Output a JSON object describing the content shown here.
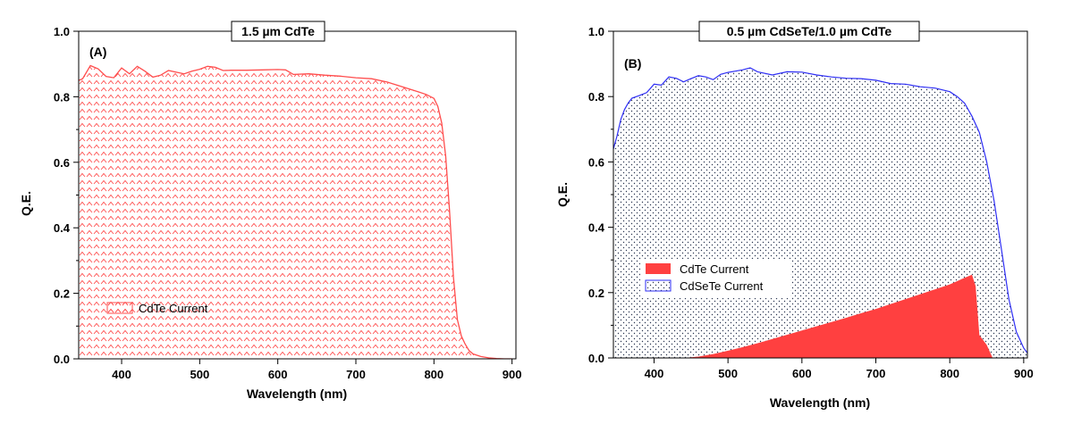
{
  "chart_data": [
    {
      "type": "area",
      "panel_label": "(A)",
      "title": "1.5 µm CdTe",
      "xlabel": "Wavelength (nm)",
      "ylabel": "Q.E.",
      "xlim": [
        345,
        905
      ],
      "ylim": [
        0,
        1.0
      ],
      "xticks": [
        400,
        500,
        600,
        700,
        800,
        900
      ],
      "yticks": [
        0.0,
        0.2,
        0.4,
        0.6,
        0.8,
        1.0
      ],
      "xtick_labels": [
        "400",
        "500",
        "600",
        "700",
        "800",
        "900"
      ],
      "ytick_labels": [
        "0.0",
        "0.2",
        "0.4",
        "0.6",
        "0.8",
        "1.0"
      ],
      "legend_position": "bottom-left",
      "series": [
        {
          "name": "CdTe Current",
          "color": "#ff4d4d",
          "fill": "chevron-pattern",
          "x": [
            345,
            350,
            360,
            370,
            380,
            390,
            400,
            410,
            420,
            430,
            440,
            450,
            460,
            470,
            480,
            490,
            500,
            510,
            520,
            530,
            540,
            560,
            580,
            600,
            610,
            620,
            640,
            660,
            680,
            700,
            720,
            740,
            760,
            780,
            790,
            800,
            805,
            810,
            815,
            820,
            825,
            830,
            835,
            840,
            845,
            850,
            860,
            870,
            880,
            890,
            900
          ],
          "values": [
            0.85,
            0.855,
            0.895,
            0.885,
            0.862,
            0.858,
            0.888,
            0.87,
            0.893,
            0.878,
            0.86,
            0.866,
            0.88,
            0.875,
            0.87,
            0.878,
            0.884,
            0.893,
            0.89,
            0.88,
            0.881,
            0.881,
            0.882,
            0.883,
            0.882,
            0.868,
            0.87,
            0.866,
            0.863,
            0.858,
            0.855,
            0.845,
            0.83,
            0.815,
            0.807,
            0.795,
            0.77,
            0.72,
            0.62,
            0.45,
            0.25,
            0.12,
            0.07,
            0.045,
            0.025,
            0.015,
            0.007,
            0.003,
            0.001,
            0.0,
            0.0
          ]
        }
      ]
    },
    {
      "type": "area",
      "panel_label": "(B)",
      "title": "0.5 µm CdSeTe/1.0 µm CdTe",
      "xlabel": "Wavelength (nm)",
      "ylabel": "Q.E.",
      "xlim": [
        345,
        905
      ],
      "ylim": [
        0,
        1.0
      ],
      "xticks": [
        400,
        500,
        600,
        700,
        800,
        900
      ],
      "yticks": [
        0.0,
        0.2,
        0.4,
        0.6,
        0.8,
        1.0
      ],
      "xtick_labels": [
        "400",
        "500",
        "600",
        "700",
        "800",
        "900"
      ],
      "ytick_labels": [
        "0.0",
        "0.2",
        "0.4",
        "0.6",
        "0.8",
        "1.0"
      ],
      "legend_position": "lower-left",
      "series": [
        {
          "name": "CdTe Current",
          "color": "#ff4040",
          "fill": "solid",
          "x": [
            345,
            440,
            460,
            480,
            500,
            520,
            540,
            560,
            580,
            600,
            620,
            640,
            660,
            680,
            700,
            720,
            740,
            760,
            780,
            800,
            820,
            830,
            835,
            840,
            850,
            858,
            860,
            870,
            905
          ],
          "values": [
            0.0,
            0.0,
            0.004,
            0.012,
            0.022,
            0.033,
            0.045,
            0.058,
            0.071,
            0.084,
            0.097,
            0.11,
            0.123,
            0.137,
            0.15,
            0.165,
            0.18,
            0.195,
            0.21,
            0.225,
            0.245,
            0.255,
            0.22,
            0.07,
            0.04,
            0.0,
            0.0,
            0.0,
            0.0
          ]
        },
        {
          "name": "CdSeTe Current",
          "color": "#2e2ef5",
          "fill": "dot-pattern",
          "x": [
            345,
            350,
            355,
            360,
            365,
            370,
            380,
            390,
            400,
            410,
            420,
            430,
            440,
            450,
            460,
            470,
            480,
            490,
            500,
            510,
            520,
            530,
            540,
            560,
            580,
            600,
            620,
            640,
            660,
            680,
            700,
            720,
            740,
            760,
            780,
            800,
            810,
            820,
            830,
            840,
            850,
            860,
            870,
            880,
            890,
            900,
            905
          ],
          "values": [
            0.64,
            0.68,
            0.73,
            0.76,
            0.78,
            0.795,
            0.803,
            0.812,
            0.838,
            0.835,
            0.86,
            0.856,
            0.845,
            0.855,
            0.864,
            0.86,
            0.852,
            0.868,
            0.874,
            0.878,
            0.882,
            0.888,
            0.876,
            0.866,
            0.876,
            0.875,
            0.866,
            0.86,
            0.856,
            0.855,
            0.85,
            0.84,
            0.838,
            0.83,
            0.826,
            0.815,
            0.8,
            0.78,
            0.74,
            0.69,
            0.6,
            0.48,
            0.33,
            0.18,
            0.08,
            0.03,
            0.015
          ]
        }
      ]
    }
  ]
}
